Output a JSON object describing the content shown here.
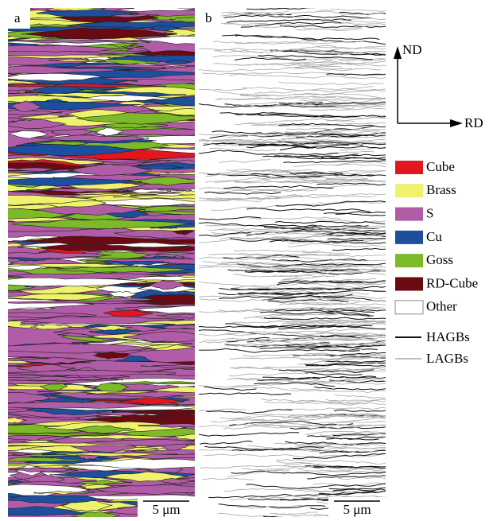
{
  "panels": [
    {
      "label": "a",
      "scale_bar": "5 μm"
    },
    {
      "label": "b",
      "scale_bar": "5 μm"
    }
  ],
  "axes": {
    "vertical": "ND",
    "horizontal": "RD"
  },
  "legend": {
    "textures": [
      {
        "name": "Cube",
        "color": "#e3161f"
      },
      {
        "name": "Brass",
        "color": "#eef26c"
      },
      {
        "name": "S",
        "color": "#b05ca6"
      },
      {
        "name": "Cu",
        "color": "#1d4f9f"
      },
      {
        "name": "Goss",
        "color": "#7cba2a"
      },
      {
        "name": "RD-Cube",
        "color": "#6a0a12"
      },
      {
        "name": "Other",
        "color": "#ffffff"
      }
    ],
    "boundaries": [
      {
        "name": "HAGBs",
        "color": "#111111"
      },
      {
        "name": "LAGBs",
        "color": "#a8a8a8"
      }
    ]
  }
}
